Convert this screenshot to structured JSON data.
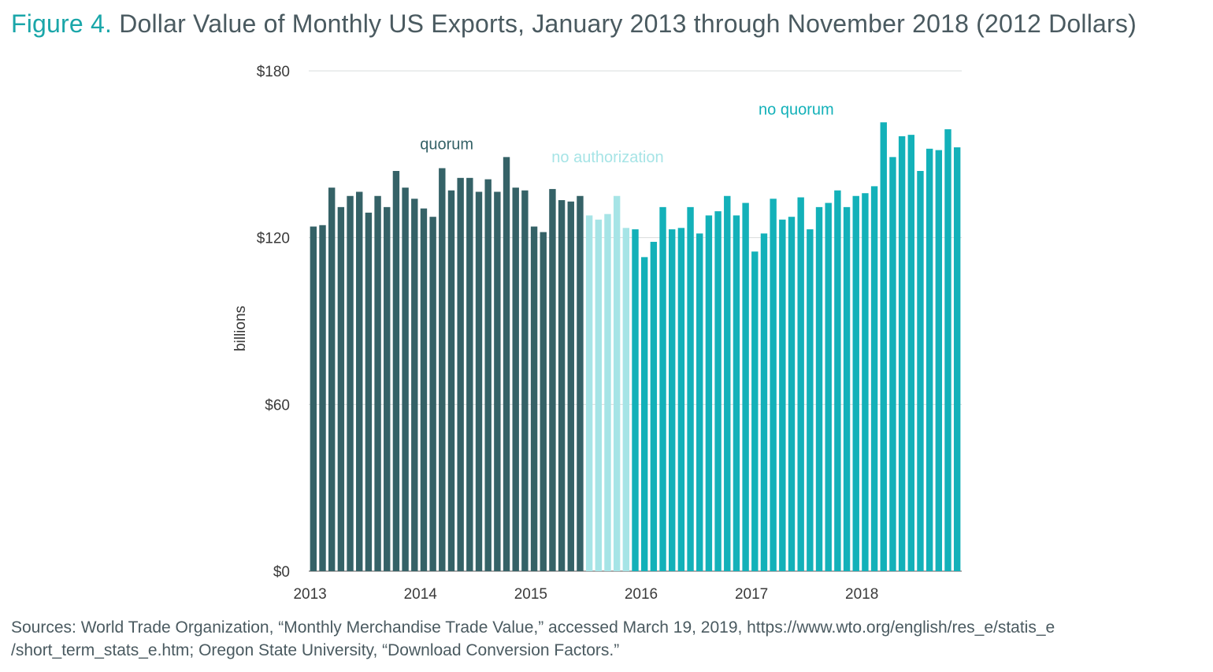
{
  "figure": {
    "label": "Figure 4.",
    "title": "Dollar Value of Monthly US Exports, January 2013 through November 2018 (2012 Dollars)"
  },
  "sources": {
    "line1": "Sources: World Trade Organization, “Monthly Merchandise Trade Value,” accessed March 19, 2019, https://www.wto.org/english/res_e/statis_e",
    "line2": "/short_term_stats_e.htm; Oregon State University, “Download Conversion Factors.”"
  },
  "colors": {
    "quorum": "#356267",
    "no_authorization": "#a6e4e6",
    "no_quorum": "#13b1b9",
    "grid": "#d9dcdc",
    "axis_text": "#3a3a3a"
  },
  "chart_data": {
    "type": "bar",
    "title": "",
    "xlabel": "",
    "ylabel": "billions",
    "ylim": [
      0,
      180
    ],
    "yticks": [
      0,
      60,
      120,
      180
    ],
    "ytick_labels": [
      "$0",
      "$60",
      "$120",
      "$180"
    ],
    "grid": true,
    "year_labels": [
      "2013",
      "2014",
      "2015",
      "2016",
      "2017",
      "2018"
    ],
    "start": "2013-01",
    "end": "2018-11",
    "series": [
      {
        "name": "quorum",
        "months": [
          "2013-01",
          "2013-02",
          "2013-03",
          "2013-04",
          "2013-05",
          "2013-06",
          "2013-07",
          "2013-08",
          "2013-09",
          "2013-10",
          "2013-11",
          "2013-12",
          "2014-01",
          "2014-02",
          "2014-03",
          "2014-04",
          "2014-05",
          "2014-06",
          "2014-07",
          "2014-08",
          "2014-09",
          "2014-10",
          "2014-11",
          "2014-12",
          "2015-01",
          "2015-02",
          "2015-03",
          "2015-04",
          "2015-05",
          "2015-06"
        ],
        "values": [
          124,
          124.5,
          138,
          131,
          135,
          136.5,
          129,
          135,
          131,
          144,
          138,
          134,
          130.5,
          127.5,
          145,
          137,
          141.5,
          141.5,
          136.5,
          141,
          136.5,
          149,
          138,
          137,
          124,
          122,
          137.5,
          133.5,
          133,
          135
        ]
      },
      {
        "name": "no authorization",
        "months": [
          "2015-07",
          "2015-08",
          "2015-09",
          "2015-10",
          "2015-11"
        ],
        "values": [
          128,
          126.5,
          128.5,
          135,
          123.5
        ]
      },
      {
        "name": "no quorum",
        "months": [
          "2015-12",
          "2016-01",
          "2016-02",
          "2016-03",
          "2016-04",
          "2016-05",
          "2016-06",
          "2016-07",
          "2016-08",
          "2016-09",
          "2016-10",
          "2016-11",
          "2016-12",
          "2017-01",
          "2017-02",
          "2017-03",
          "2017-04",
          "2017-05",
          "2017-06",
          "2017-07",
          "2017-08",
          "2017-09",
          "2017-10",
          "2017-11",
          "2017-12",
          "2018-01",
          "2018-02",
          "2018-03",
          "2018-04",
          "2018-05",
          "2018-06",
          "2018-07",
          "2018-08",
          "2018-09",
          "2018-10",
          "2018-11"
        ],
        "values": [
          123,
          113,
          118.5,
          131,
          123,
          123.5,
          131,
          121.5,
          128,
          129.5,
          135,
          128,
          132.5,
          115,
          121.5,
          134,
          126.5,
          127.5,
          134.5,
          123,
          131,
          132.5,
          137,
          131,
          135,
          136,
          138.5,
          161.5,
          149,
          156.5,
          157,
          144,
          152,
          151.5,
          159,
          152.5
        ]
      }
    ]
  }
}
